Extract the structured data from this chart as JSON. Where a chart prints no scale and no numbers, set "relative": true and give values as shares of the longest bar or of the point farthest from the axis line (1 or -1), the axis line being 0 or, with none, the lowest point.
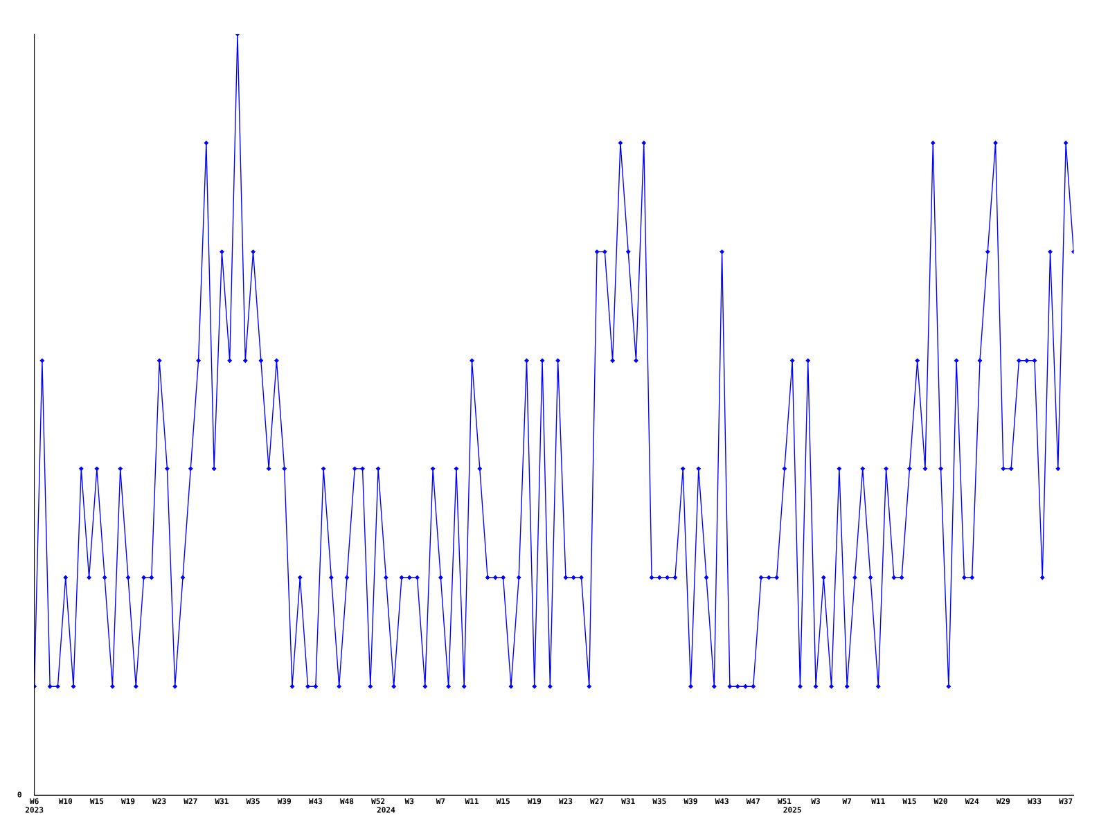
{
  "chart_data": {
    "type": "line",
    "relative": true,
    "marker": "diamond",
    "line_style": "solid",
    "annotations": [
      "0"
    ],
    "categories": [
      "W6\n2023",
      null,
      null,
      null,
      "W10",
      null,
      null,
      null,
      "W15",
      null,
      null,
      null,
      "W19",
      null,
      null,
      null,
      "W23",
      null,
      null,
      null,
      "W27",
      null,
      null,
      null,
      "W31",
      null,
      null,
      null,
      "W35",
      null,
      null,
      null,
      "W39",
      null,
      null,
      null,
      "W43",
      null,
      null,
      null,
      "W48",
      null,
      null,
      null,
      "W52",
      "\n2024",
      null,
      null,
      "W3",
      null,
      null,
      null,
      "W7",
      null,
      null,
      null,
      "W11",
      null,
      null,
      null,
      "W15",
      null,
      null,
      null,
      "W19",
      null,
      null,
      null,
      "W23",
      null,
      null,
      null,
      "W27",
      null,
      null,
      null,
      "W31",
      null,
      null,
      null,
      "W35",
      null,
      null,
      null,
      "W39",
      null,
      null,
      null,
      "W43",
      null,
      null,
      null,
      "W47",
      null,
      null,
      null,
      "W51",
      "\n2025",
      null,
      null,
      "W3",
      null,
      null,
      null,
      "W7",
      null,
      null,
      null,
      "W11",
      null,
      null,
      null,
      "W15",
      null,
      null,
      null,
      "W20",
      null,
      null,
      null,
      "W24",
      null,
      null,
      null,
      "W29",
      null,
      null,
      null,
      "W33",
      null,
      null,
      null,
      "W37",
      null
    ],
    "series": [
      {
        "color": "#0000ff",
        "values": [
          0.143,
          0.571,
          0.143,
          0.143,
          0.286,
          0.143,
          0.429,
          0.286,
          0.429,
          0.286,
          0.143,
          0.429,
          0.286,
          0.143,
          0.286,
          0.286,
          0.571,
          0.429,
          0.143,
          0.286,
          0.429,
          0.571,
          0.857,
          0.429,
          0.714,
          0.571,
          1,
          0.571,
          0.714,
          0.571,
          0.429,
          0.571,
          0.429,
          0.143,
          0.286,
          0.143,
          0.143,
          0.429,
          0.286,
          0.143,
          0.286,
          0.429,
          0.429,
          0.143,
          0.429,
          0.286,
          0.143,
          0.286,
          0.286,
          0.286,
          0.143,
          0.429,
          0.286,
          0.143,
          0.429,
          0.143,
          0.571,
          0.429,
          0.286,
          0.286,
          0.286,
          0.143,
          0.286,
          0.571,
          0.143,
          0.571,
          0.143,
          0.571,
          0.286,
          0.286,
          0.286,
          0.143,
          0.714,
          0.714,
          0.571,
          0.857,
          0.714,
          0.571,
          0.857,
          0.286,
          0.286,
          0.286,
          0.286,
          0.429,
          0.143,
          0.429,
          0.286,
          0.143,
          0.714,
          0.143,
          0.143,
          0.143,
          0.143,
          0.286,
          0.286,
          0.286,
          0.429,
          0.571,
          0.143,
          0.571,
          0.143,
          0.286,
          0.143,
          0.429,
          0.143,
          0.286,
          0.429,
          0.286,
          0.143,
          0.429,
          0.286,
          0.286,
          0.429,
          0.571,
          0.429,
          0.857,
          0.429,
          0.143,
          0.571,
          0.286,
          0.286,
          0.571,
          0.714,
          0.857,
          0.429,
          0.429,
          0.571,
          0.571,
          0.571,
          0.286,
          0.714,
          0.429,
          0.857,
          0.714
        ]
      }
    ]
  }
}
